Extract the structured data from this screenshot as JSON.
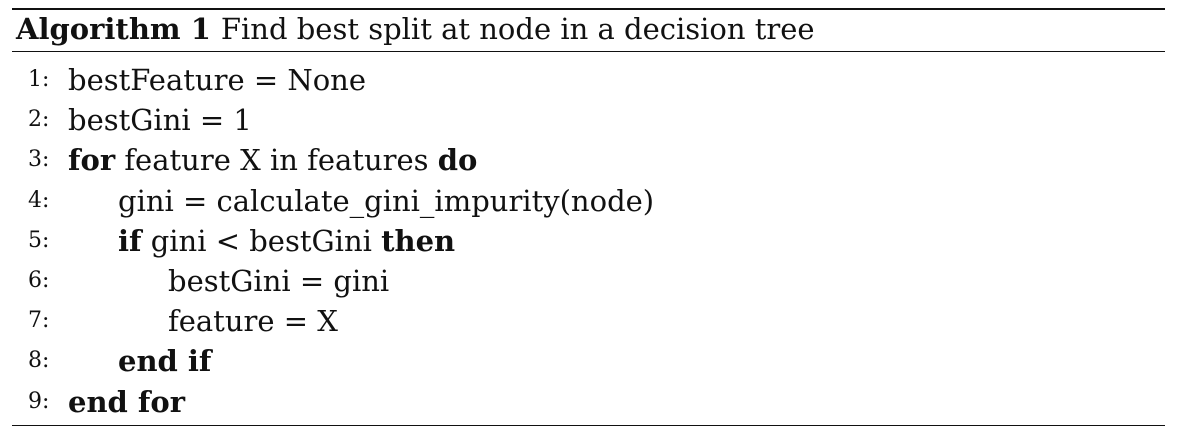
{
  "algorithm": {
    "label": "Algorithm 1",
    "title": "Find best split at node in a decision tree",
    "lines": [
      {
        "num": "1:",
        "text": "bestFeature = None"
      },
      {
        "num": "2:",
        "text": "bestGini = 1"
      },
      {
        "num": "3:",
        "kw1": "for",
        "text": " feature X in features ",
        "kw2": "do"
      },
      {
        "num": "4:",
        "text": "gini = calculate_gini_impurity(node)"
      },
      {
        "num": "5:",
        "kw1": "if",
        "text": " gini < bestGini ",
        "kw2": "then"
      },
      {
        "num": "6:",
        "text": "bestGini = gini"
      },
      {
        "num": "7:",
        "text": "feature = X"
      },
      {
        "num": "8:",
        "kw1": "end if"
      },
      {
        "num": "9:",
        "kw1": "end for"
      }
    ]
  }
}
